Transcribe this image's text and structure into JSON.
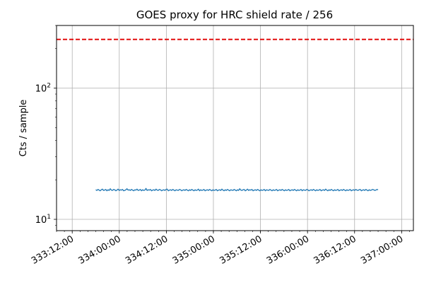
{
  "chart_data": {
    "type": "line",
    "title": "GOES proxy for HRC shield rate / 256",
    "xlabel": "",
    "ylabel": "Cts / sample",
    "y_scale": "log",
    "ylim": [
      8.2,
      300
    ],
    "y_ticks": [
      {
        "value": 10,
        "base": "10",
        "exp": "1"
      },
      {
        "value": 100,
        "base": "10",
        "exp": "2"
      }
    ],
    "xlim": [
      "333:08:00",
      "337:03:00"
    ],
    "x_ticks": [
      "333:12:00",
      "334:00:00",
      "334:12:00",
      "335:00:00",
      "335:12:00",
      "336:00:00",
      "336:12:00",
      "337:00:00"
    ],
    "grid": true,
    "series": [
      {
        "color": "#1f77b4",
        "x_start": "333:18:00",
        "x_end": "336:18:00",
        "mean": 16.7,
        "samples": [
          16.8,
          16.6,
          16.9,
          16.7,
          16.5,
          16.8,
          17.0,
          16.6,
          16.7,
          16.9,
          16.5,
          16.8,
          16.6,
          17.1,
          16.7,
          16.6,
          16.9,
          16.8,
          16.5,
          16.7,
          17.0,
          16.6,
          16.8,
          16.7,
          16.9,
          16.5,
          16.6,
          16.8,
          17.1,
          16.7,
          16.8,
          16.6,
          16.9,
          16.7,
          16.5,
          16.8,
          16.7,
          17.0,
          16.6,
          16.7,
          16.9,
          16.5,
          16.8,
          16.6,
          16.7,
          17.2,
          16.6,
          16.8,
          16.7,
          16.9,
          16.5,
          16.7,
          16.8,
          16.6,
          17.0,
          16.7,
          16.6,
          16.9,
          16.8,
          16.5,
          16.7,
          16.8,
          16.6,
          16.9,
          17.0,
          16.5,
          16.7,
          16.8,
          16.6,
          16.9,
          16.7,
          16.5,
          16.8,
          16.7,
          16.6,
          16.9,
          16.8,
          16.5,
          16.7,
          16.8,
          16.6,
          16.9,
          16.7,
          16.5,
          16.8,
          16.6,
          16.9,
          16.7,
          16.5,
          16.8,
          16.6,
          16.7,
          17.0,
          16.5,
          16.8,
          16.6,
          16.7,
          16.9,
          16.5,
          16.7,
          16.8,
          16.6,
          16.9,
          16.7,
          16.5,
          16.8,
          16.6,
          16.7,
          16.9,
          16.5,
          16.7,
          16.8,
          16.6,
          17.0,
          16.7,
          16.5,
          16.8,
          16.6,
          16.9,
          16.7,
          16.5,
          16.8,
          16.7,
          16.6,
          16.9,
          16.7,
          16.5,
          16.8,
          16.6,
          17.1,
          16.7,
          16.6,
          16.8,
          16.9,
          16.5,
          16.7,
          17.0,
          16.6,
          16.8,
          16.7,
          16.9,
          16.5,
          16.7,
          16.8,
          16.6,
          16.9,
          16.7,
          16.5,
          16.8,
          16.6,
          16.7,
          16.9,
          16.5,
          16.8,
          16.7,
          16.6,
          16.9,
          16.7,
          16.5,
          16.8,
          16.6,
          16.7,
          16.9,
          16.5,
          16.7,
          16.8,
          16.6,
          16.9,
          16.7,
          16.5,
          16.8,
          16.6,
          16.7,
          16.9,
          16.5,
          16.7,
          16.8,
          16.6,
          16.9,
          16.7,
          16.5,
          16.8,
          16.6,
          16.7,
          16.9,
          16.5,
          16.8,
          16.7,
          16.6,
          16.9,
          16.8,
          16.5,
          16.7,
          16.8,
          16.6,
          16.9,
          16.7,
          16.5,
          16.8,
          16.6,
          16.7,
          16.9,
          16.5,
          16.7,
          16.8,
          16.6,
          17.0,
          16.7,
          16.5,
          16.8,
          16.6,
          16.9,
          16.7,
          16.5,
          16.8,
          16.6,
          16.7,
          16.9,
          16.5,
          16.7,
          16.8,
          16.6,
          16.9,
          16.7,
          16.5,
          16.8,
          16.6,
          16.7,
          16.9,
          16.5,
          16.7,
          16.8,
          16.6,
          16.9,
          16.7,
          16.6,
          16.8,
          16.9,
          16.5,
          16.7,
          16.8,
          16.6,
          16.9,
          16.7,
          16.5,
          16.8,
          16.6,
          16.7,
          16.9,
          16.8,
          16.6,
          16.7,
          16.9,
          16.8
        ]
      }
    ],
    "reference_line": {
      "value": 235,
      "color": "#e00000",
      "style": "dashed"
    }
  }
}
